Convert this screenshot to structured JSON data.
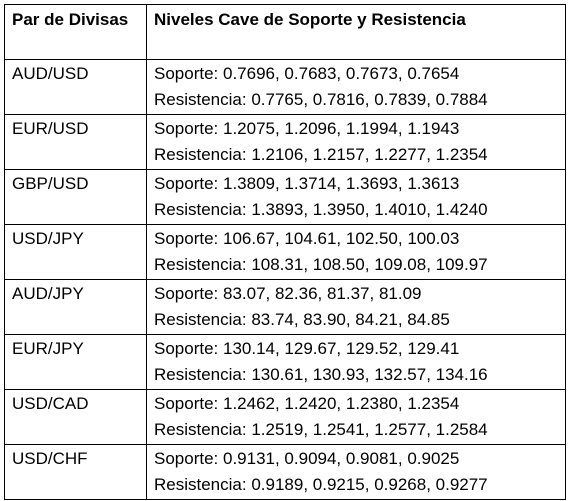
{
  "table": {
    "headers": [
      "Par de Divisas",
      "Niveles Cave de Soporte y Resistencia"
    ],
    "rows": [
      {
        "pair": "AUD/USD",
        "support": "Soporte: 0.7696, 0.7683, 0.7673, 0.7654",
        "resistance": "Resistencia: 0.7765, 0.7816, 0.7839, 0.7884"
      },
      {
        "pair": "EUR/USD",
        "support": "Soporte: 1.2075, 1.2096, 1.1994, 1.1943",
        "resistance": "Resistencia: 1.2106, 1.2157, 1.2277, 1.2354"
      },
      {
        "pair": "GBP/USD",
        "support": "Soporte: 1.3809, 1.3714, 1.3693, 1.3613",
        "resistance": "Resistencia: 1.3893, 1.3950, 1.4010, 1.4240"
      },
      {
        "pair": "USD/JPY",
        "support": "Soporte: 106.67, 104.61, 102.50, 100.03",
        "resistance": "Resistencia: 108.31, 108.50, 109.08, 109.97"
      },
      {
        "pair": "AUD/JPY",
        "support": "Soporte: 83.07, 82.36, 81.37, 81.09",
        "resistance": "Resistencia: 83.74, 83.90, 84.21, 84.85"
      },
      {
        "pair": "EUR/JPY",
        "support": "Soporte: 130.14, 129.67, 129.52, 129.41",
        "resistance": "Resistencia: 130.61, 130.93, 132.57, 134.16"
      },
      {
        "pair": "USD/CAD",
        "support": "Soporte: 1.2462, 1.2420, 1.2380, 1.2354",
        "resistance": "Resistencia: 1.2519, 1.2541, 1.2577, 1.2584"
      },
      {
        "pair": "USD/CHF",
        "support": "Soporte: 0.9131, 0.9094, 0.9081, 0.9025",
        "resistance": "Resistencia: 0.9189, 0.9215, 0.9268, 0.9277"
      }
    ]
  }
}
